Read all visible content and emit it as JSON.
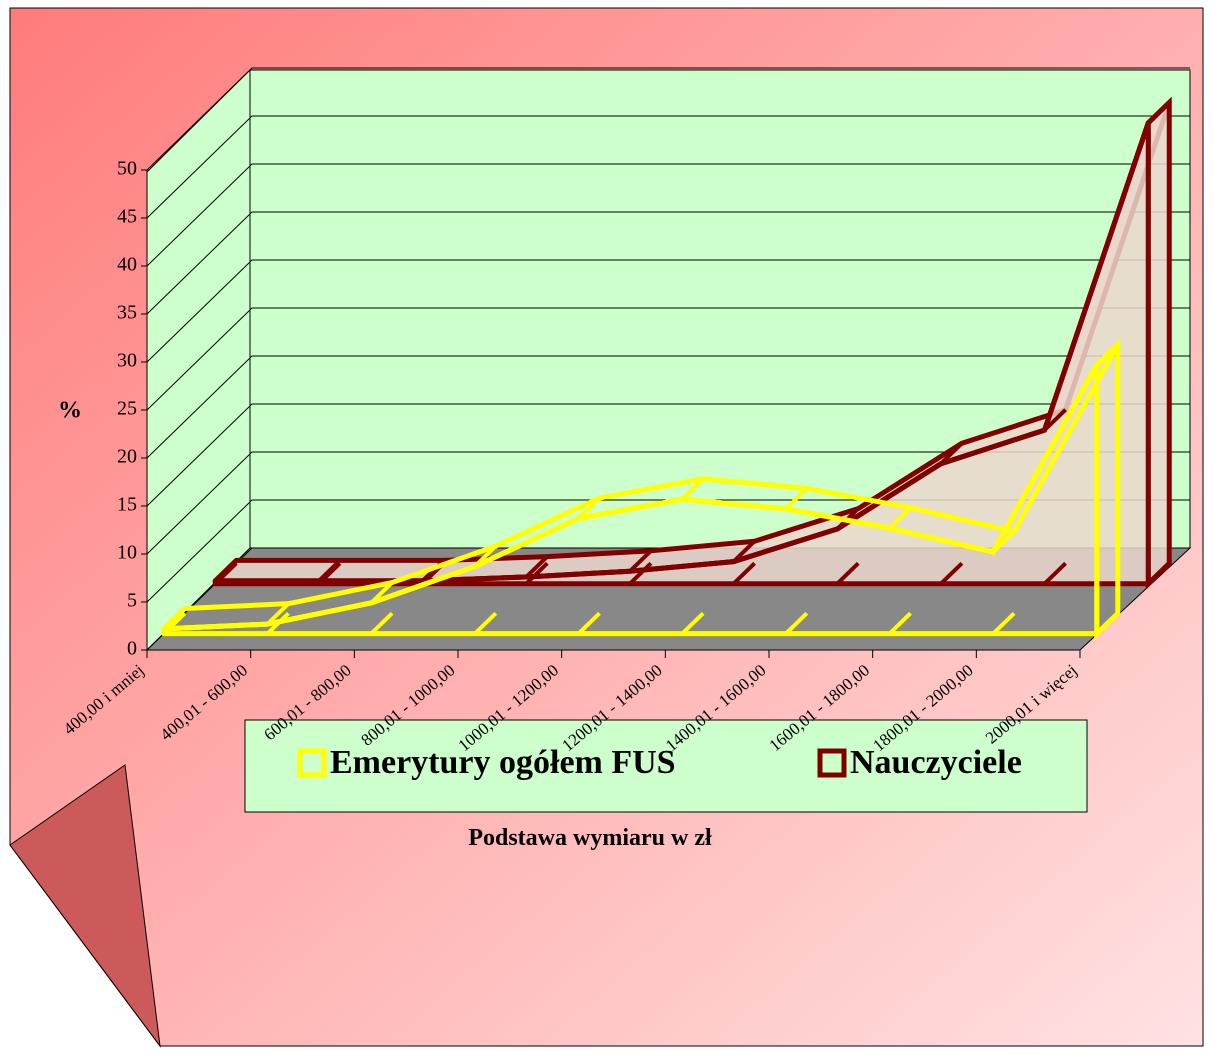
{
  "chart_data": {
    "type": "area3d",
    "x_label": "Podstawa wymiaru w zł",
    "y_label": "%",
    "categories": [
      "400,00 i mniej",
      "400,01 - 600,00",
      "600,01 - 800,00",
      "800,01 - 1000,00",
      "1000,01 - 1200,00",
      "1200,01 - 1400,00",
      "1400,01 - 1600,00",
      "1600,01 - 1800,00",
      "1800,01 - 2000,00",
      "2000,01 i więcej"
    ],
    "series": [
      {
        "name": "Emerytury ogółem  FUS",
        "color": "#ffff00",
        "values": [
          0.5,
          1,
          3.2,
          7,
          12,
          14,
          13,
          11,
          8.5,
          28
        ]
      },
      {
        "name": "Nauczyciele",
        "color": "#800000",
        "values": [
          0.3,
          0.3,
          0.3,
          0.7,
          1.3,
          2.3,
          5.7,
          12.5,
          16,
          48
        ]
      }
    ],
    "ylim": [
      0,
      50
    ],
    "yticks": [
      0,
      5,
      10,
      15,
      20,
      25,
      30,
      35,
      40,
      45,
      50
    ],
    "grid": true,
    "legend": "bottom"
  }
}
